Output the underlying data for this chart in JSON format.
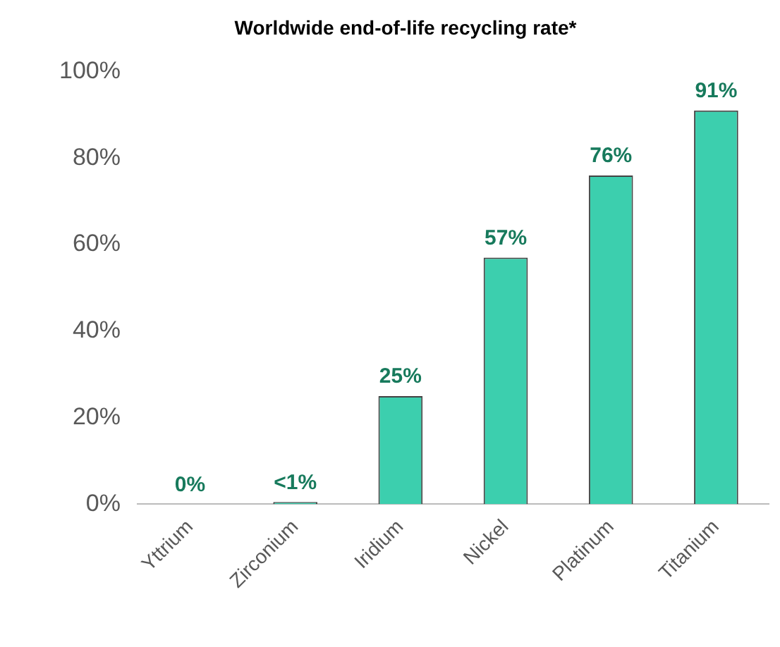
{
  "chart_data": {
    "type": "bar",
    "title": "Worldwide end-of-life recycling rate*",
    "categories": [
      "Yttrium",
      "Zirconium",
      "Iridium",
      "Nickel",
      "Platinum",
      "Titanium"
    ],
    "values": [
      0,
      0.5,
      25,
      57,
      76,
      91
    ],
    "value_labels": [
      "0%",
      "<1%",
      "25%",
      "57%",
      "76%",
      "91%"
    ],
    "color": "#3ccfae",
    "ylim": [
      0,
      100
    ],
    "yticks": [
      {
        "value": 0,
        "label": "0%"
      },
      {
        "value": 20,
        "label": "20%"
      },
      {
        "value": 40,
        "label": "40%"
      },
      {
        "value": 60,
        "label": "60%"
      },
      {
        "value": 80,
        "label": "80%"
      },
      {
        "value": 100,
        "label": "100%"
      }
    ]
  }
}
